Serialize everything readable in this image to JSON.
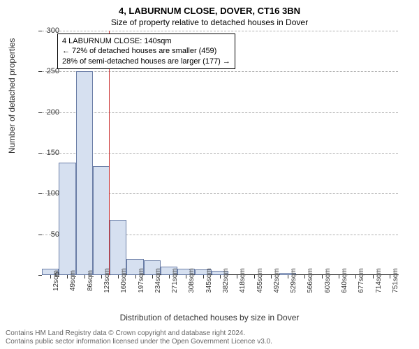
{
  "title": "4, LABURNUM CLOSE, DOVER, CT16 3BN",
  "subtitle": "Size of property relative to detached houses in Dover",
  "info_box": {
    "line1": "4 LABURNUM CLOSE: 140sqm",
    "line2": "← 72% of detached houses are smaller (459)",
    "line3": "28% of semi-detached houses are larger (177) →"
  },
  "chart": {
    "type": "histogram",
    "ylabel": "Number of detached properties",
    "xlabel": "Distribution of detached houses by size in Dover",
    "ylim": [
      0,
      300
    ],
    "ytick_step": 50,
    "yticks": [
      0,
      50,
      100,
      150,
      200,
      250,
      300
    ],
    "x_categories": [
      "12sqm",
      "49sqm",
      "86sqm",
      "123sqm",
      "160sqm",
      "197sqm",
      "234sqm",
      "271sqm",
      "308sqm",
      "345sqm",
      "382sqm",
      "418sqm",
      "455sqm",
      "492sqm",
      "529sqm",
      "566sqm",
      "603sqm",
      "640sqm",
      "677sqm",
      "714sqm",
      "751sqm"
    ],
    "values": [
      8,
      138,
      250,
      134,
      68,
      20,
      18,
      10,
      8,
      7,
      5,
      0,
      0,
      0,
      3,
      0,
      0,
      0,
      0,
      0,
      0
    ],
    "bar_fill": "#d6e0f0",
    "bar_border": "#6a7da6",
    "grid_color": "#b0b0b0",
    "marker_value": 140,
    "marker_color": "#cc3333",
    "background_color": "#ffffff",
    "title_fontsize": 13,
    "subtitle_fontsize": 12,
    "label_fontsize": 12,
    "tick_fontsize": 11
  },
  "footer": {
    "line1": "Contains HM Land Registry data © Crown copyright and database right 2024.",
    "line2": "Contains public sector information licensed under the Open Government Licence v3.0."
  }
}
